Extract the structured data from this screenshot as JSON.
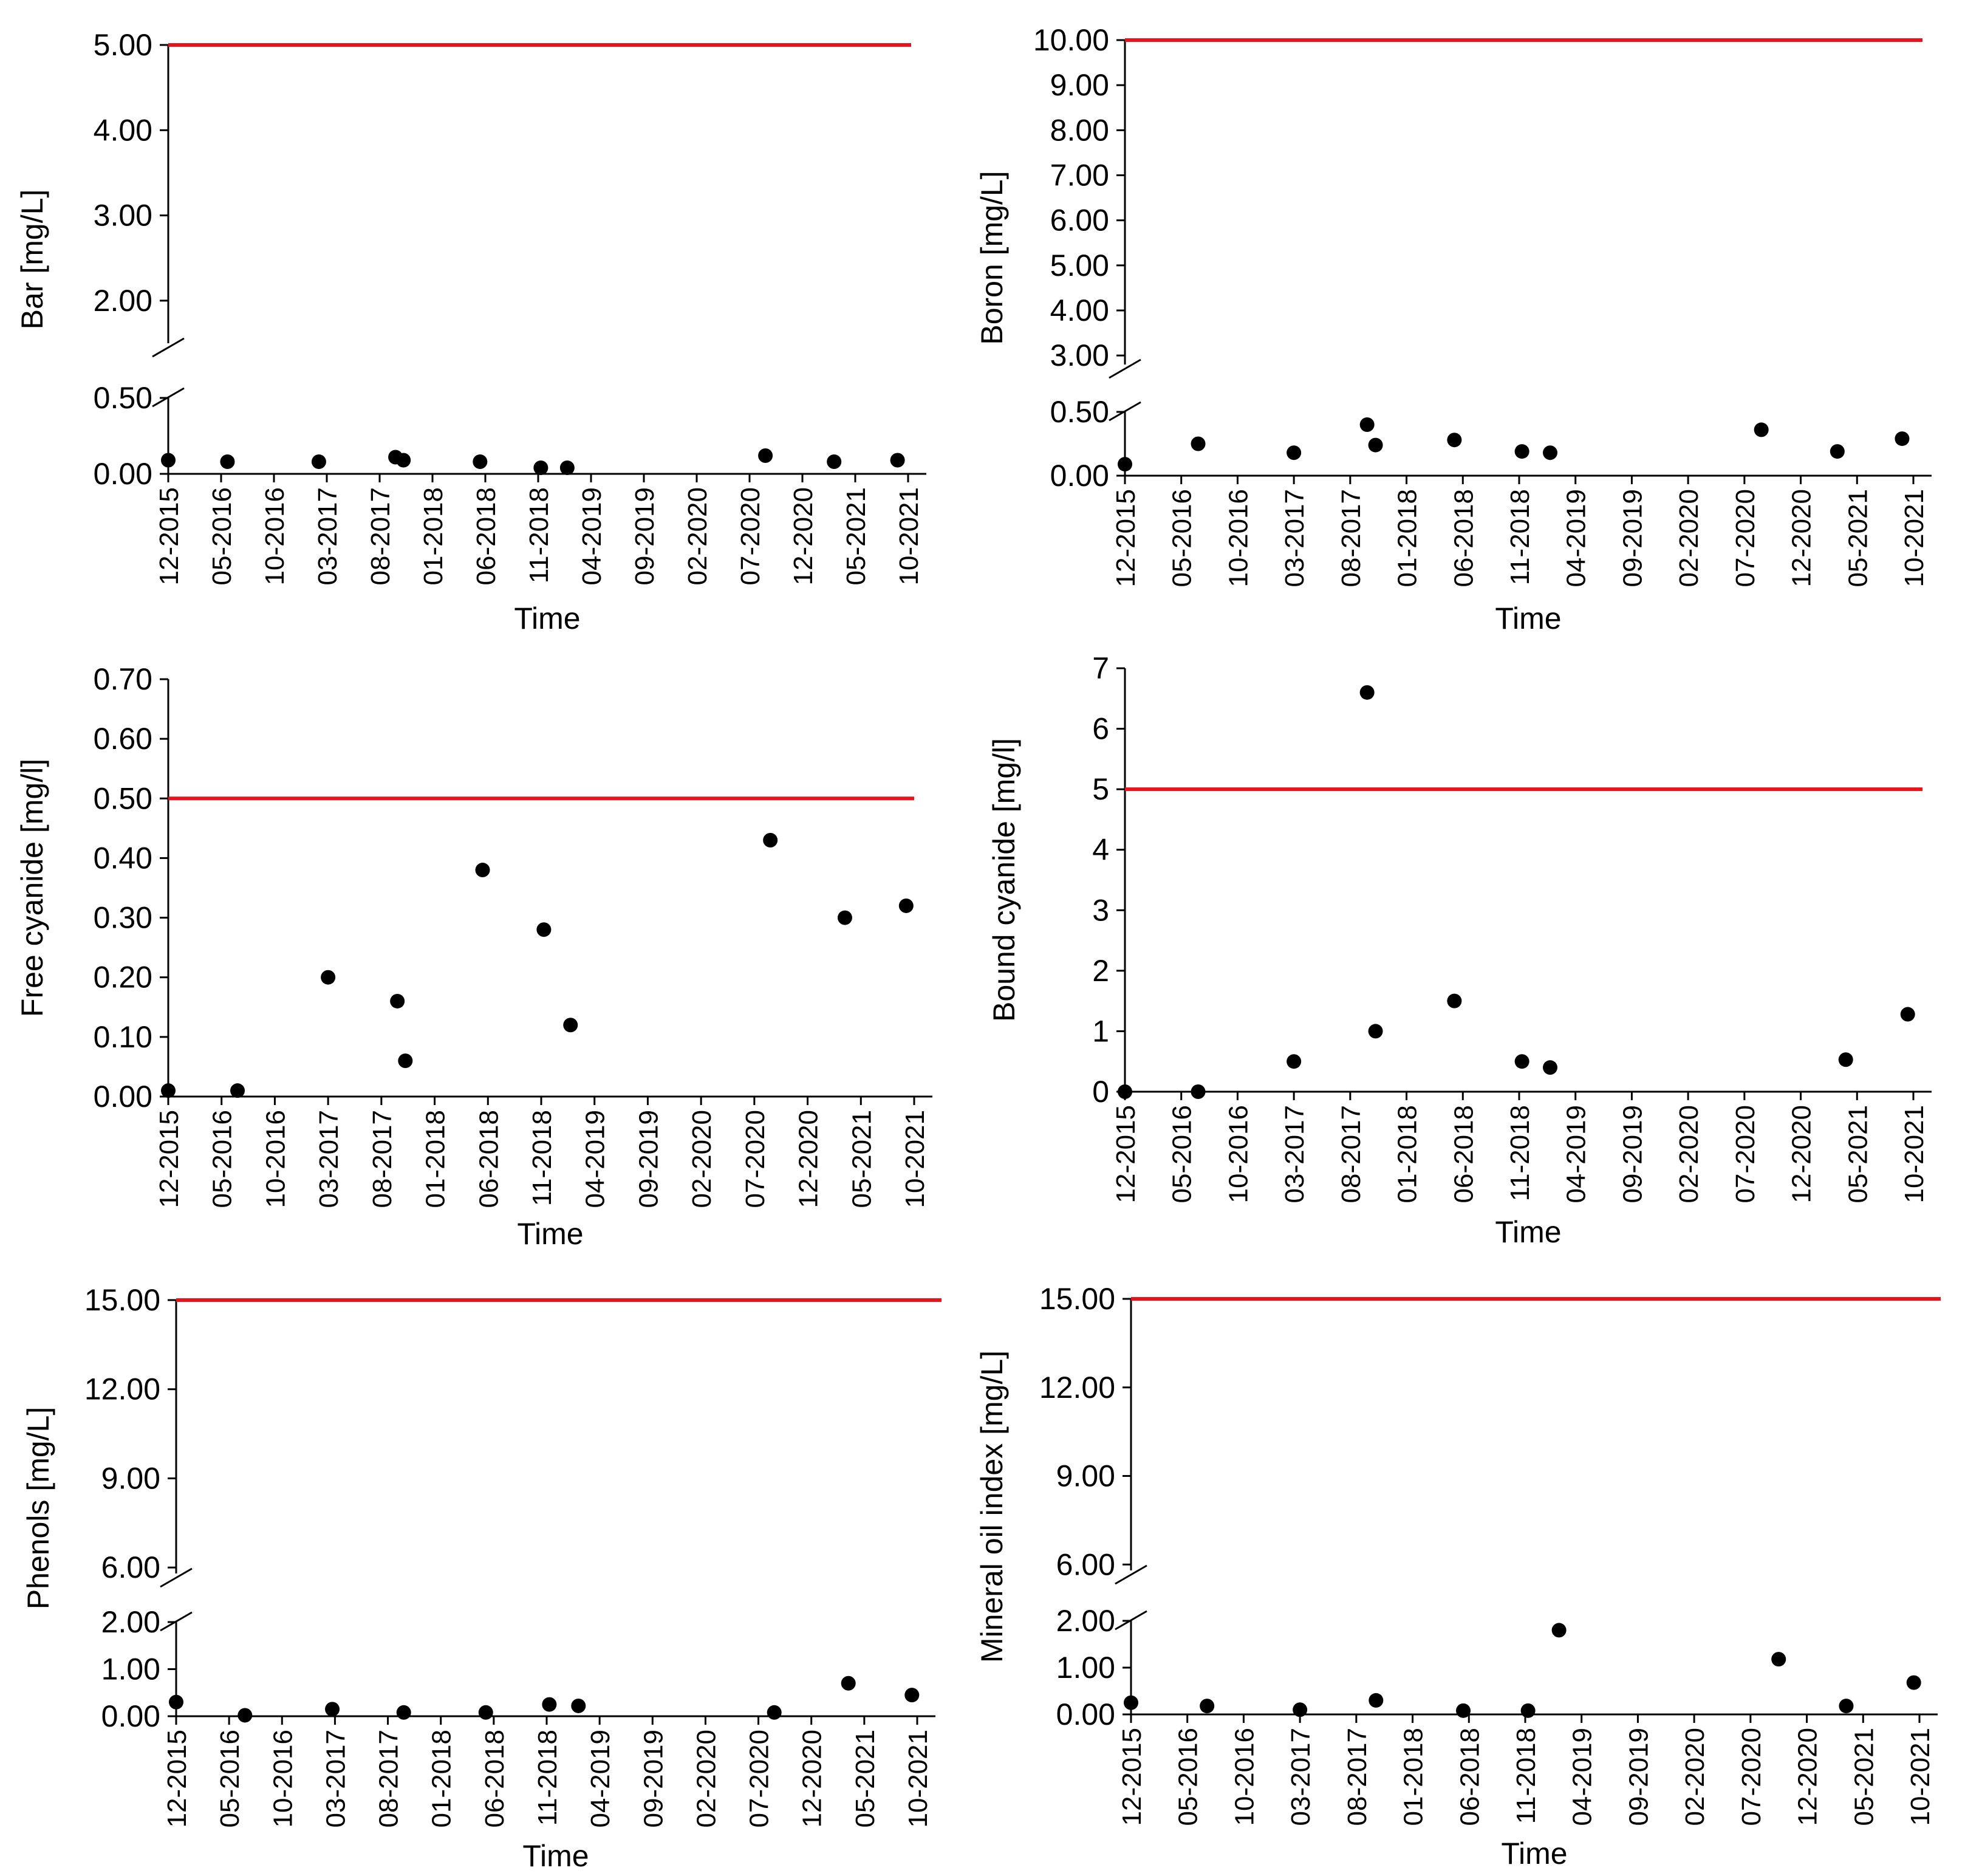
{
  "x_tick_labels": [
    "12-2015",
    "05-2016",
    "10-2016",
    "03-2017",
    "08-2017",
    "01-2018",
    "06-2018",
    "11-2018",
    "04-2019",
    "09-2019",
    "02-2020",
    "07-2020",
    "12-2020",
    "05-2021",
    "10-2021"
  ],
  "colors": {
    "limit_line": "#e8131b",
    "marker": "#000000",
    "axis": "#000000"
  },
  "chart_data": [
    {
      "id": "bar",
      "type": "scatter",
      "title": "",
      "xlabel": "Time",
      "ylabel": "Bar [mg/L]",
      "broken_axis": true,
      "lower_range": [
        0,
        0.5
      ],
      "upper_range": [
        1.5,
        5.0
      ],
      "lower_ticks": [
        "0.00",
        "0.50"
      ],
      "upper_ticks": [
        "2.00",
        "3.00",
        "4.00",
        "5.00"
      ],
      "limit": 5.0,
      "x": [
        0,
        1.12,
        2.85,
        4.3,
        4.45,
        5.9,
        7.05,
        7.55,
        11.3,
        12.6,
        13.8
      ],
      "values": [
        0.09,
        0.08,
        0.08,
        0.11,
        0.09,
        0.08,
        0.04,
        0.04,
        0.12,
        0.08,
        0.09
      ]
    },
    {
      "id": "boron",
      "type": "scatter",
      "title": "",
      "xlabel": "Time",
      "ylabel": "Boron [mg/L]",
      "broken_axis": true,
      "lower_range": [
        0,
        0.5
      ],
      "upper_range": [
        2.8,
        10.0
      ],
      "lower_ticks": [
        "0.00",
        "0.50"
      ],
      "upper_ticks": [
        "3.00",
        "4.00",
        "5.00",
        "6.00",
        "7.00",
        "8.00",
        "9.00",
        "10.00"
      ],
      "limit": 10.0,
      "x": [
        0,
        1.3,
        3.0,
        4.3,
        4.45,
        5.85,
        7.05,
        7.55,
        11.3,
        12.65,
        13.8
      ],
      "values": [
        0.09,
        0.25,
        0.18,
        0.4,
        0.24,
        0.28,
        0.19,
        0.18,
        0.36,
        0.19,
        0.29
      ]
    },
    {
      "id": "free-cyanide",
      "type": "scatter",
      "title": "",
      "xlabel": "Time",
      "ylabel": "Free cyanide [mg/l]",
      "broken_axis": false,
      "range": [
        0,
        0.7
      ],
      "ticks": [
        "0.00",
        "0.10",
        "0.20",
        "0.30",
        "0.40",
        "0.50",
        "0.60",
        "0.70"
      ],
      "limit": 0.5,
      "x": [
        0,
        1.3,
        3.0,
        4.3,
        4.45,
        5.9,
        7.05,
        7.55,
        11.3,
        12.7,
        13.85
      ],
      "values": [
        0.01,
        0.01,
        0.2,
        0.16,
        0.06,
        0.38,
        0.28,
        0.12,
        0.43,
        0.3,
        0.32
      ]
    },
    {
      "id": "bound-cyanide",
      "type": "scatter",
      "title": "",
      "xlabel": "Time",
      "ylabel": "Bound cyanide [mg/l]",
      "broken_axis": false,
      "range": [
        0,
        7
      ],
      "ticks": [
        "0",
        "1",
        "2",
        "3",
        "4",
        "5",
        "6",
        "7"
      ],
      "limit": 5,
      "x": [
        0,
        1.3,
        3.0,
        4.3,
        4.45,
        5.85,
        7.05,
        7.55,
        12.8,
        13.9
      ],
      "values": [
        0,
        0,
        0.5,
        6.6,
        1.0,
        1.5,
        0.5,
        0.4,
        0.53,
        1.28
      ]
    },
    {
      "id": "phenols",
      "type": "scatter",
      "title": "",
      "xlabel": "Time",
      "ylabel": "Phenols [mg/L]",
      "broken_axis": true,
      "lower_range": [
        0,
        2.0
      ],
      "upper_range": [
        5.8,
        15.0
      ],
      "lower_ticks": [
        "0.00",
        "1.00",
        "2.00"
      ],
      "upper_ticks": [
        "6.00",
        "9.00",
        "12.00",
        "15.00"
      ],
      "limit": 15.0,
      "x": [
        0,
        1.3,
        2.95,
        4.3,
        5.85,
        7.05,
        7.6,
        11.3,
        12.7,
        13.9
      ],
      "values": [
        0.3,
        0.02,
        0.15,
        0.08,
        0.08,
        0.25,
        0.22,
        0.08,
        0.7,
        0.45
      ]
    },
    {
      "id": "mineral-oil",
      "type": "scatter",
      "title": "",
      "xlabel": "Time",
      "ylabel": "Mineral oil index [mg/L]",
      "broken_axis": true,
      "lower_range": [
        0,
        2.0
      ],
      "upper_range": [
        5.8,
        15.0
      ],
      "lower_ticks": [
        "0.00",
        "1.00",
        "2.00"
      ],
      "upper_ticks": [
        "6.00",
        "9.00",
        "12.00",
        "15.00"
      ],
      "limit": 15.0,
      "x": [
        0,
        1.35,
        3.0,
        4.35,
        5.9,
        7.05,
        7.6,
        11.5,
        12.7,
        13.9
      ],
      "values": [
        0.25,
        0.18,
        0.1,
        0.3,
        0.08,
        0.08,
        1.8,
        1.18,
        0.18,
        0.68
      ]
    }
  ]
}
